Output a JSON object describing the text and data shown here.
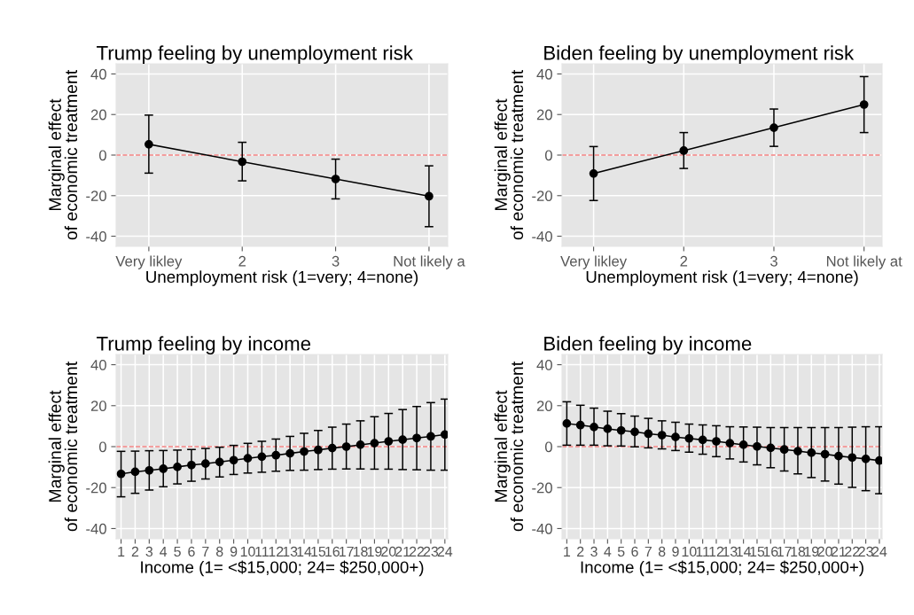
{
  "chart_data": [
    {
      "type": "line",
      "title": "Trump feeling by unemployment risk",
      "xlabel": "Unemployment risk (1=very; 4=none)",
      "ylabel": "Marginal effect\nof economic treatment",
      "categories": [
        "Very likley",
        "2",
        "3",
        "Not likely a"
      ],
      "ylim": [
        -45,
        45
      ],
      "yticks": [
        -40,
        -20,
        0,
        20,
        40
      ],
      "grid": true,
      "marker": "circle",
      "line_style": "solid",
      "series": [
        {
          "color": "#000000",
          "values": [
            5.3,
            -3.3,
            -11.8,
            -20.3
          ],
          "errors": [
            [
              -8.9,
              19.7
            ],
            [
              -12.7,
              6.3
            ],
            [
              -21.6,
              -2.0
            ],
            [
              -35.3,
              -5.3
            ]
          ]
        }
      ],
      "ref_lines": [
        {
          "axis": "y",
          "value": 0,
          "color": "#f08080",
          "line_style": "dashed"
        }
      ]
    },
    {
      "type": "line",
      "title": "Biden feeling by unemployment risk",
      "xlabel": "Unemployment risk (1=very; 4=none)",
      "ylabel": "Marginal effect\nof economic treatment",
      "categories": [
        "Very likley",
        "2",
        "3",
        "Not likely at"
      ],
      "ylim": [
        -45,
        45
      ],
      "yticks": [
        -40,
        -20,
        0,
        20,
        40
      ],
      "grid": true,
      "marker": "circle",
      "line_style": "solid",
      "series": [
        {
          "color": "#000000",
          "values": [
            -9.1,
            2.2,
            13.5,
            24.9
          ],
          "errors": [
            [
              -22.4,
              4.2
            ],
            [
              -6.6,
              11.1
            ],
            [
              4.3,
              22.7
            ],
            [
              11.1,
              38.7
            ]
          ]
        }
      ],
      "ref_lines": [
        {
          "axis": "y",
          "value": 0,
          "color": "#f08080",
          "line_style": "dashed"
        }
      ]
    },
    {
      "type": "line",
      "title": "Trump feeling by income",
      "xlabel": "Income (1= <$15,000; 24= $250,000+)",
      "ylabel": "Marginal effect\nof economic treatment",
      "categories": [
        "1",
        "2",
        "3",
        "4",
        "5",
        "6",
        "7",
        "8",
        "9",
        "10",
        "11",
        "12",
        "13",
        "14",
        "15",
        "16",
        "17",
        "18",
        "19",
        "20",
        "21",
        "22",
        "23",
        "24"
      ],
      "ylim": [
        -45,
        45
      ],
      "yticks": [
        -40,
        -20,
        0,
        20,
        40
      ],
      "grid": true,
      "marker": "circle",
      "line_style": "solid",
      "series": [
        {
          "color": "#000000",
          "values": [
            -13.3,
            -12.3,
            -11.6,
            -10.8,
            -9.9,
            -9.0,
            -8.3,
            -7.5,
            -6.6,
            -5.7,
            -4.9,
            -4.2,
            -3.3,
            -2.4,
            -1.6,
            -0.7,
            0.0,
            0.9,
            1.7,
            2.6,
            3.4,
            4.2,
            5.0,
            5.9
          ],
          "errors": [
            [
              -24.5,
              -2.3
            ],
            [
              -22.8,
              -2.2
            ],
            [
              -21.2,
              -2.0
            ],
            [
              -19.6,
              -1.9
            ],
            [
              -18.2,
              -1.7
            ],
            [
              -16.9,
              -1.4
            ],
            [
              -15.8,
              -0.9
            ],
            [
              -14.8,
              -0.3
            ],
            [
              -13.6,
              0.6
            ],
            [
              -12.9,
              1.6
            ],
            [
              -12.5,
              2.6
            ],
            [
              -12.0,
              3.7
            ],
            [
              -11.6,
              5.0
            ],
            [
              -11.5,
              6.5
            ],
            [
              -11.2,
              7.9
            ],
            [
              -11.0,
              9.5
            ],
            [
              -10.9,
              11.0
            ],
            [
              -10.9,
              12.6
            ],
            [
              -11.0,
              14.6
            ],
            [
              -11.0,
              16.2
            ],
            [
              -11.2,
              18.1
            ],
            [
              -11.3,
              19.6
            ],
            [
              -11.5,
              21.5
            ],
            [
              -11.5,
              23.2
            ]
          ]
        }
      ],
      "ref_lines": [
        {
          "axis": "y",
          "value": 0,
          "color": "#f08080",
          "line_style": "dashed"
        }
      ]
    },
    {
      "type": "line",
      "title": "Biden feeling by income",
      "xlabel": "Income (1= <$15,000; 24= $250,000+)",
      "ylabel": "Marginal effect\nof economic treatment",
      "categories": [
        "1",
        "2",
        "3",
        "4",
        "5",
        "6",
        "7",
        "8",
        "9",
        "10",
        "11",
        "12",
        "13",
        "14",
        "15",
        "16",
        "17",
        "18",
        "19",
        "20",
        "21",
        "22",
        "23",
        "24"
      ],
      "ylim": [
        -45,
        45
      ],
      "yticks": [
        -40,
        -20,
        0,
        20,
        40
      ],
      "grid": true,
      "marker": "circle",
      "line_style": "solid",
      "series": [
        {
          "color": "#000000",
          "values": [
            11.3,
            10.5,
            9.6,
            8.7,
            7.9,
            7.2,
            6.3,
            5.6,
            4.7,
            4.0,
            3.3,
            2.6,
            1.7,
            0.9,
            0.1,
            -0.6,
            -1.4,
            -2.2,
            -3.0,
            -3.7,
            -4.6,
            -5.3,
            -6.0,
            -6.8
          ],
          "errors": [
            [
              0.7,
              21.9
            ],
            [
              0.7,
              20.2
            ],
            [
              0.7,
              18.8
            ],
            [
              0.4,
              17.3
            ],
            [
              0.3,
              16.1
            ],
            [
              -0.1,
              14.9
            ],
            [
              -0.6,
              13.8
            ],
            [
              -1.1,
              12.6
            ],
            [
              -1.9,
              11.9
            ],
            [
              -2.7,
              11.0
            ],
            [
              -3.7,
              10.6
            ],
            [
              -4.9,
              10.2
            ],
            [
              -6.0,
              9.7
            ],
            [
              -7.5,
              9.6
            ],
            [
              -8.9,
              9.5
            ],
            [
              -10.3,
              9.3
            ],
            [
              -11.9,
              9.3
            ],
            [
              -13.3,
              9.3
            ],
            [
              -15.1,
              9.3
            ],
            [
              -16.8,
              9.3
            ],
            [
              -18.3,
              9.3
            ],
            [
              -19.9,
              9.5
            ],
            [
              -21.5,
              9.7
            ],
            [
              -23.0,
              9.7
            ]
          ]
        }
      ],
      "ref_lines": [
        {
          "axis": "y",
          "value": 0,
          "color": "#f08080",
          "line_style": "dashed"
        }
      ]
    }
  ]
}
